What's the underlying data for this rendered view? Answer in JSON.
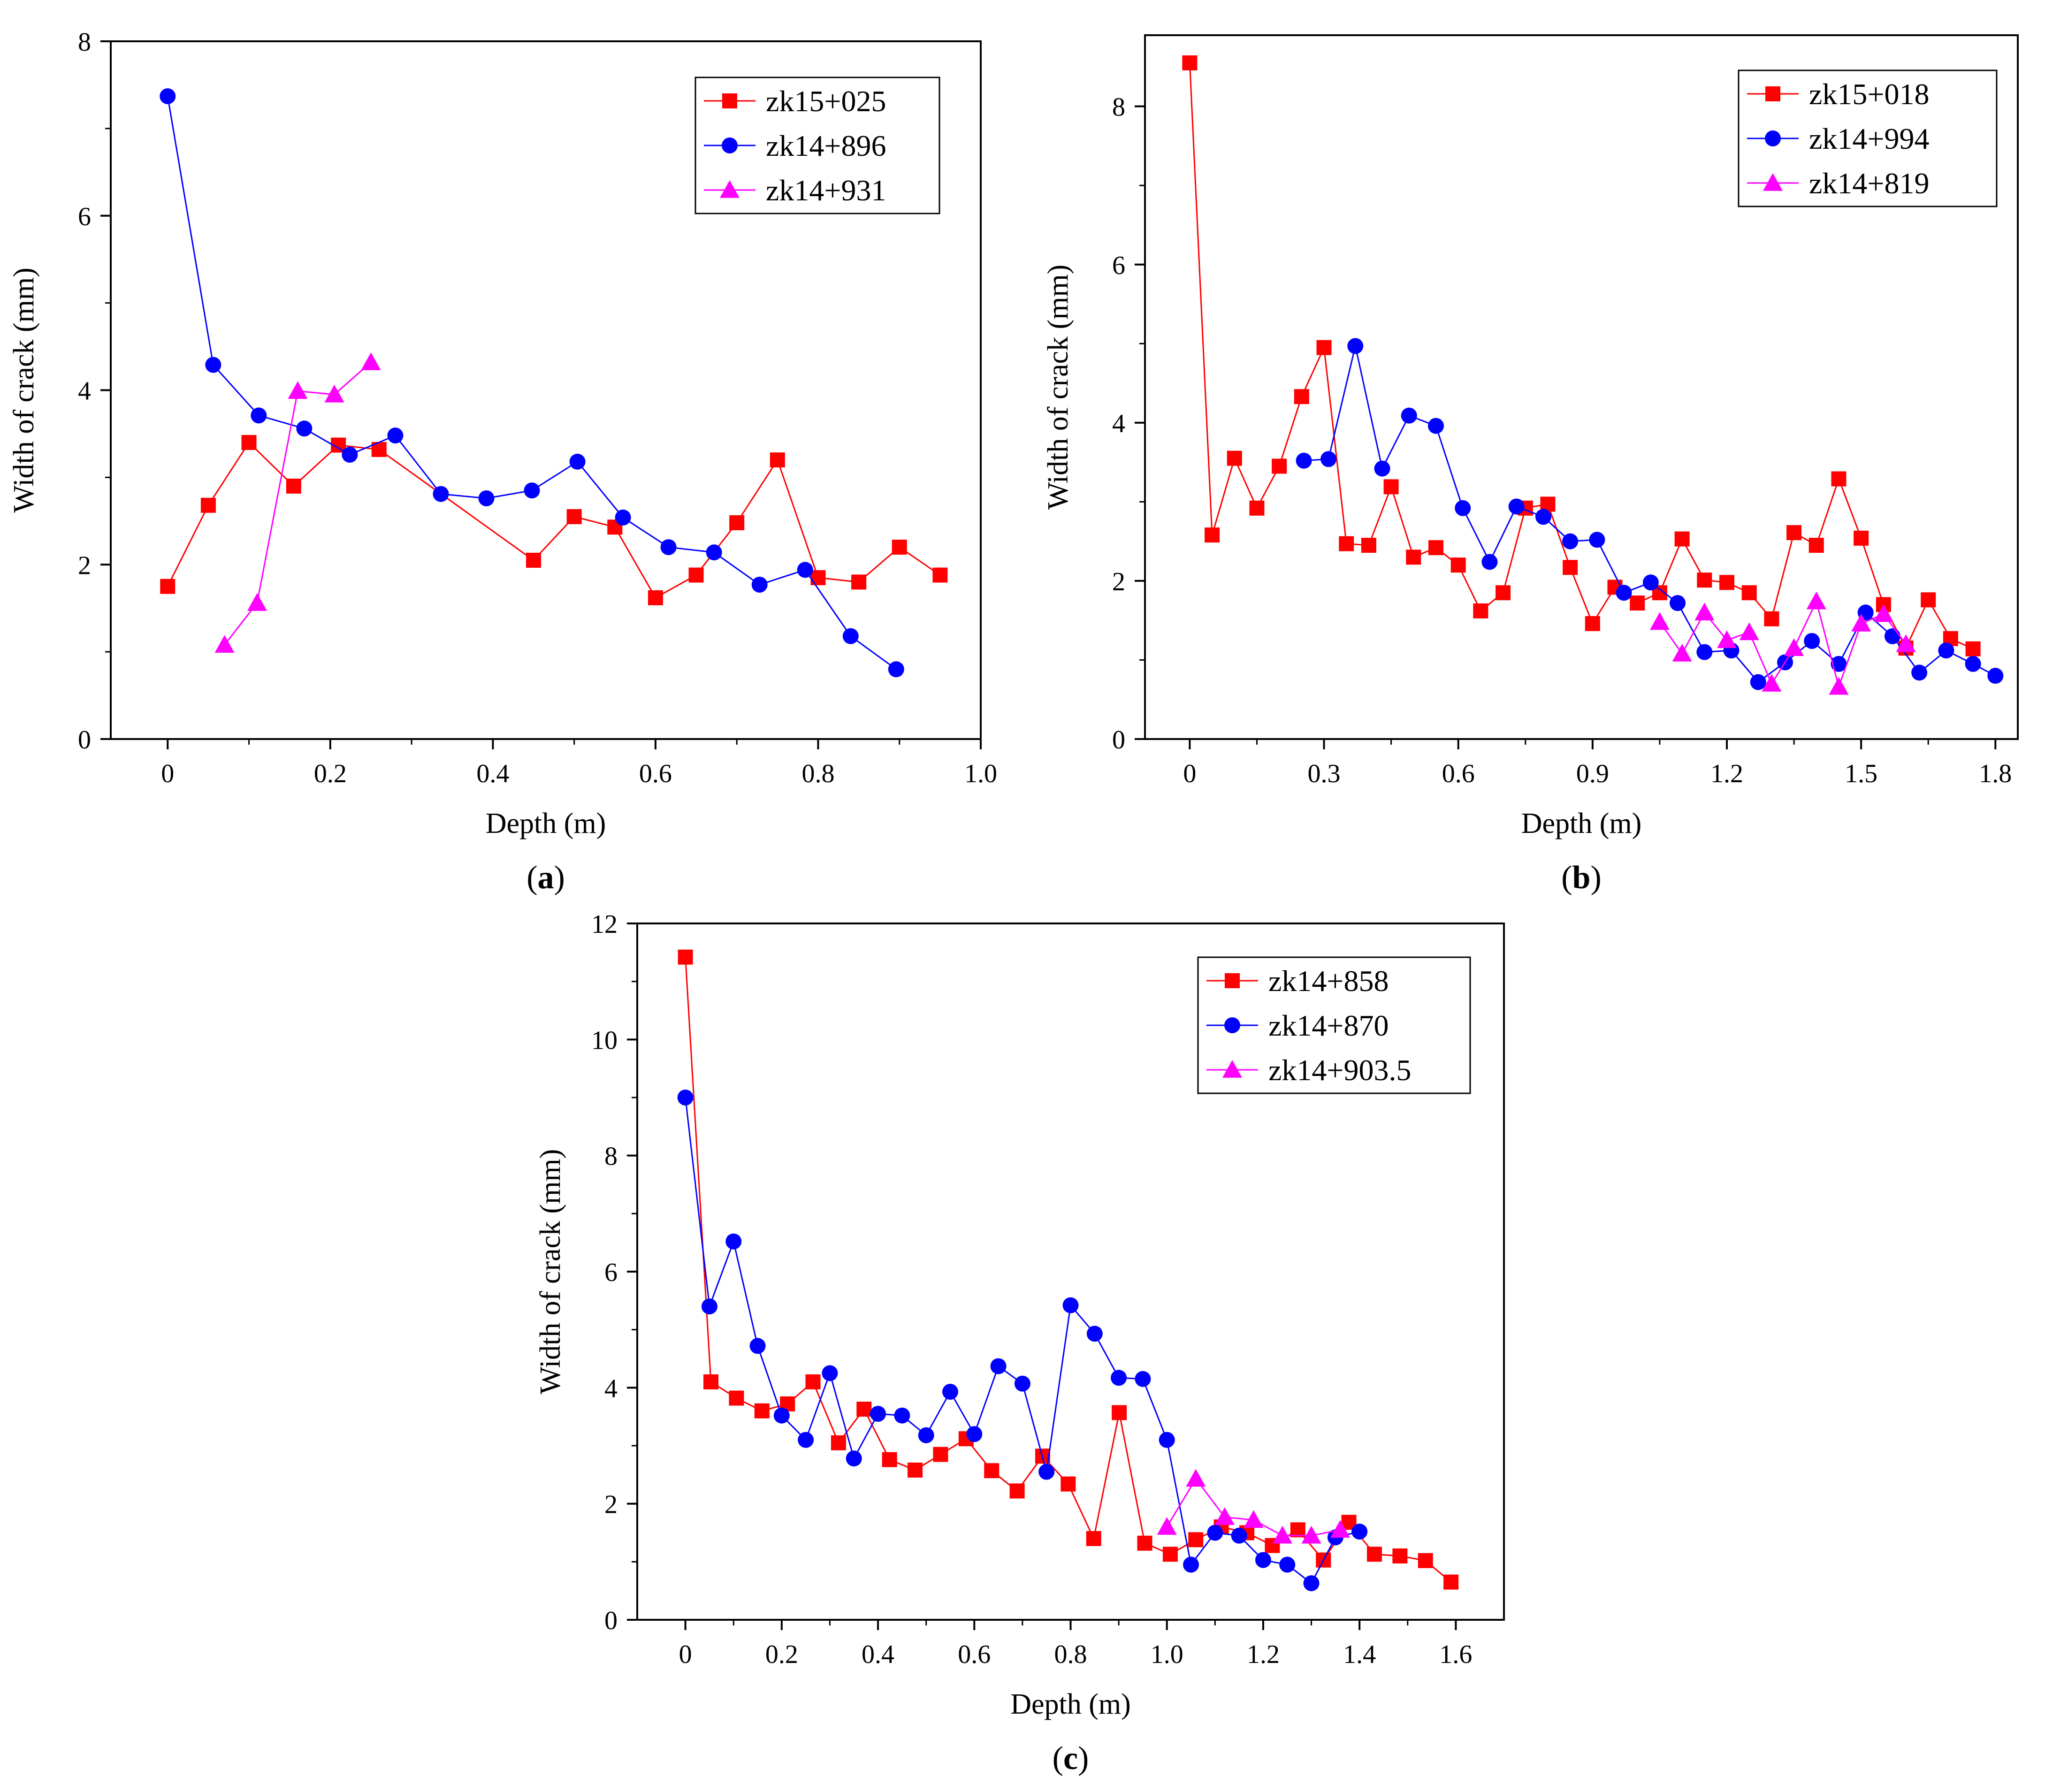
{
  "chart_data": [
    {
      "type": "line",
      "panel_label": "a",
      "xlabel": "Depth (m)",
      "ylabel": "Width of crack (mm)",
      "xlim": [
        -0.07,
        1.0
      ],
      "ylim": [
        0,
        8
      ],
      "xticks": [
        0,
        0.2,
        0.4,
        0.6,
        0.8,
        1.0
      ],
      "xtick_labels": [
        "0",
        "0.2",
        "0.4",
        "0.6",
        "0.8",
        "1.0"
      ],
      "yticks": [
        0,
        2,
        4,
        6,
        8
      ],
      "ytick_labels": [
        "0",
        "2",
        "4",
        "6",
        "8"
      ],
      "legend_position": "top-right",
      "series": [
        {
          "name": "zk15+025",
          "color": "#ff0000",
          "marker": "square",
          "x": [
            0,
            0.05,
            0.1,
            0.155,
            0.21,
            0.26,
            0.45,
            0.5,
            0.55,
            0.6,
            0.65,
            0.7,
            0.75,
            0.8,
            0.85,
            0.9,
            0.95
          ],
          "y": [
            1.75,
            2.68,
            3.4,
            2.9,
            3.37,
            3.32,
            2.05,
            2.55,
            2.43,
            1.62,
            1.88,
            2.48,
            3.2,
            1.85,
            1.8,
            2.2,
            1.88
          ]
        },
        {
          "name": "zk14+896",
          "color": "#0000ff",
          "marker": "circle",
          "x": [
            0,
            0.056,
            0.112,
            0.168,
            0.224,
            0.28,
            0.336,
            0.392,
            0.448,
            0.504,
            0.56,
            0.616,
            0.672,
            0.728,
            0.784,
            0.84,
            0.896
          ],
          "y": [
            7.37,
            4.29,
            3.71,
            3.56,
            3.26,
            3.48,
            2.81,
            2.76,
            2.85,
            3.18,
            2.54,
            2.2,
            2.14,
            1.77,
            1.94,
            1.18,
            0.8
          ]
        },
        {
          "name": "zk14+931",
          "color": "#ff00ff",
          "marker": "triangle",
          "x": [
            0.07,
            0.11,
            0.16,
            0.205,
            0.25
          ],
          "y": [
            1.08,
            1.56,
            3.99,
            3.95,
            4.32
          ]
        }
      ]
    },
    {
      "type": "line",
      "panel_label": "b",
      "xlabel": "Depth (m)",
      "ylabel": "Width of crack (mm)",
      "xlim": [
        -0.1,
        1.85
      ],
      "ylim": [
        0,
        8.9
      ],
      "xticks": [
        0,
        0.3,
        0.6,
        0.9,
        1.2,
        1.5,
        1.8
      ],
      "xtick_labels": [
        "0",
        "0.3",
        "0.6",
        "0.9",
        "1.2",
        "1.5",
        "1.8"
      ],
      "yticks": [
        0,
        2,
        4,
        6,
        8
      ],
      "ytick_labels": [
        "0",
        "2",
        "4",
        "6",
        "8"
      ],
      "legend_position": "top-right",
      "series": [
        {
          "name": "zk15+018",
          "color": "#ff0000",
          "marker": "square",
          "x": [
            0,
            0.05,
            0.1,
            0.15,
            0.2,
            0.25,
            0.3,
            0.35,
            0.4,
            0.45,
            0.5,
            0.55,
            0.6,
            0.65,
            0.7,
            0.75,
            0.8,
            0.85,
            0.9,
            0.95,
            1.0,
            1.05,
            1.1,
            1.15,
            1.2,
            1.25,
            1.3,
            1.35,
            1.4,
            1.45,
            1.5,
            1.55,
            1.6,
            1.65,
            1.7,
            1.75
          ],
          "y": [
            8.55,
            2.58,
            3.55,
            2.92,
            3.45,
            4.33,
            4.95,
            2.47,
            2.45,
            3.19,
            2.3,
            2.42,
            2.2,
            1.62,
            1.85,
            2.92,
            2.97,
            2.17,
            1.46,
            1.92,
            1.72,
            1.85,
            2.53,
            2.01,
            1.98,
            1.85,
            1.52,
            2.61,
            2.45,
            3.29,
            2.54,
            1.7,
            1.15,
            1.76,
            1.27,
            1.14
          ]
        },
        {
          "name": "zk14+994",
          "color": "#0000ff",
          "marker": "circle",
          "x": [
            0.255,
            0.31,
            0.37,
            0.43,
            0.49,
            0.55,
            0.61,
            0.67,
            0.73,
            0.79,
            0.85,
            0.91,
            0.97,
            1.03,
            1.09,
            1.15,
            1.21,
            1.27,
            1.33,
            1.39,
            1.45,
            1.51,
            1.57,
            1.63,
            1.69,
            1.75,
            1.8
          ],
          "y": [
            3.52,
            3.54,
            4.97,
            3.42,
            4.09,
            3.96,
            2.92,
            2.24,
            2.94,
            2.81,
            2.5,
            2.52,
            1.85,
            1.98,
            1.72,
            1.1,
            1.12,
            0.72,
            0.97,
            1.24,
            0.95,
            1.6,
            1.3,
            0.84,
            1.12,
            0.95,
            0.8
          ]
        },
        {
          "name": "zk14+819",
          "color": "#ff00ff",
          "marker": "triangle",
          "x": [
            1.05,
            1.1,
            1.15,
            1.2,
            1.25,
            1.3,
            1.35,
            1.4,
            1.45,
            1.5,
            1.55,
            1.6
          ],
          "y": [
            1.48,
            1.08,
            1.6,
            1.25,
            1.35,
            0.7,
            1.15,
            1.74,
            0.66,
            1.46,
            1.58,
            1.2
          ]
        }
      ]
    },
    {
      "type": "line",
      "panel_label": "c",
      "xlabel": "Depth (m)",
      "ylabel": "Width of crack (mm)",
      "xlim": [
        -0.1,
        1.7
      ],
      "ylim": [
        0,
        12
      ],
      "xticks": [
        0,
        0.2,
        0.4,
        0.6,
        0.8,
        1.0,
        1.2,
        1.4,
        1.6
      ],
      "xtick_labels": [
        "0",
        "0.2",
        "0.4",
        "0.6",
        "0.8",
        "1.0",
        "1.2",
        "1.4",
        "1.6"
      ],
      "yticks": [
        0,
        2,
        4,
        6,
        8,
        10,
        12
      ],
      "ytick_labels": [
        "0",
        "2",
        "4",
        "6",
        "8",
        "10",
        "12"
      ],
      "legend_position": "top-right",
      "series": [
        {
          "name": "zk14+858",
          "color": "#ff0000",
          "marker": "square",
          "x": [
            0,
            0.053,
            0.106,
            0.159,
            0.212,
            0.265,
            0.318,
            0.371,
            0.424,
            0.477,
            0.53,
            0.583,
            0.636,
            0.689,
            0.742,
            0.795,
            0.848,
            0.901,
            0.954,
            1.007,
            1.06,
            1.113,
            1.166,
            1.219,
            1.272,
            1.325,
            1.378,
            1.431,
            1.484,
            1.537,
            1.59
          ],
          "y": [
            11.42,
            4.1,
            3.82,
            3.6,
            3.72,
            4.1,
            3.05,
            3.63,
            2.76,
            2.58,
            2.85,
            3.12,
            2.57,
            2.22,
            2.82,
            2.34,
            1.4,
            3.57,
            1.32,
            1.13,
            1.38,
            1.6,
            1.5,
            1.28,
            1.55,
            1.03,
            1.68,
            1.13,
            1.1,
            1.02,
            0.65
          ]
        },
        {
          "name": "zk14+870",
          "color": "#0000ff",
          "marker": "circle",
          "x": [
            0,
            0.05,
            0.1,
            0.15,
            0.2,
            0.25,
            0.3,
            0.35,
            0.4,
            0.45,
            0.5,
            0.55,
            0.6,
            0.65,
            0.7,
            0.75,
            0.8,
            0.85,
            0.9,
            0.95,
            1.0,
            1.05,
            1.1,
            1.15,
            1.2,
            1.25,
            1.3,
            1.35,
            1.4
          ],
          "y": [
            9.0,
            5.4,
            6.52,
            4.72,
            3.52,
            3.1,
            4.25,
            2.78,
            3.55,
            3.52,
            3.18,
            3.93,
            3.2,
            4.37,
            4.07,
            2.55,
            5.42,
            4.93,
            4.17,
            4.15,
            3.1,
            0.95,
            1.5,
            1.45,
            1.03,
            0.95,
            0.63,
            1.42,
            1.52
          ]
        },
        {
          "name": "zk14+903.5",
          "color": "#ff00ff",
          "marker": "triangle",
          "x": [
            1.0,
            1.06,
            1.12,
            1.18,
            1.24,
            1.3,
            1.36
          ],
          "y": [
            1.6,
            2.43,
            1.77,
            1.72,
            1.45,
            1.45,
            1.55
          ]
        }
      ]
    }
  ]
}
